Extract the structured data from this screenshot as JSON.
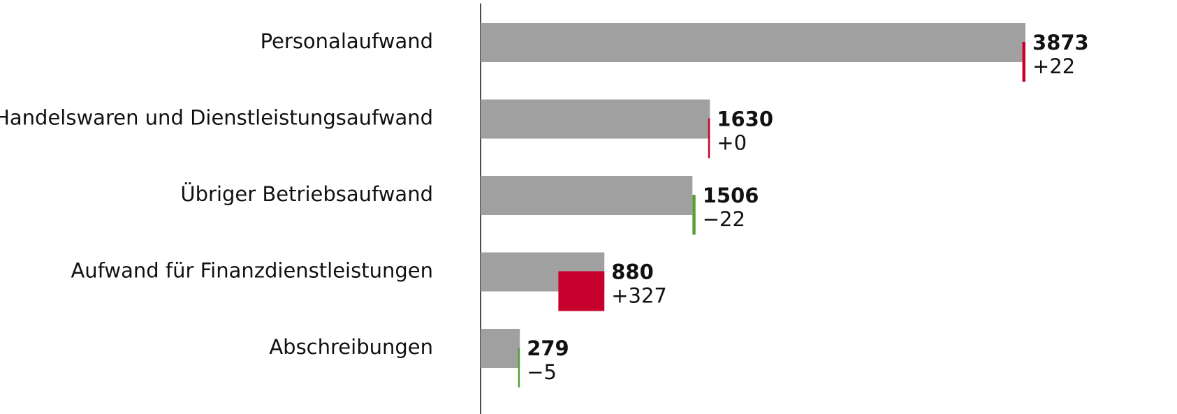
{
  "chart_data": {
    "type": "bar",
    "categories": [
      "Personalaufwand",
      "Handelswaren und Dienstleistungsaufwand",
      "Übriger Betriebsaufwand",
      "Aufwand für Finanzdienstleistungen",
      "Abschreibungen"
    ],
    "values": [
      3873,
      1630,
      1506,
      880,
      279
    ],
    "color": "#a0a0a0",
    "changes": {
      "values": [
        22,
        0,
        -22,
        327,
        -5
      ],
      "value_labels": [
        "+22",
        "+0",
        "−22",
        "+327",
        "−5"
      ],
      "positive_color": "#c8002e",
      "negative_color": "#5a9e3a"
    },
    "xlim": [
      0,
      4000
    ]
  }
}
